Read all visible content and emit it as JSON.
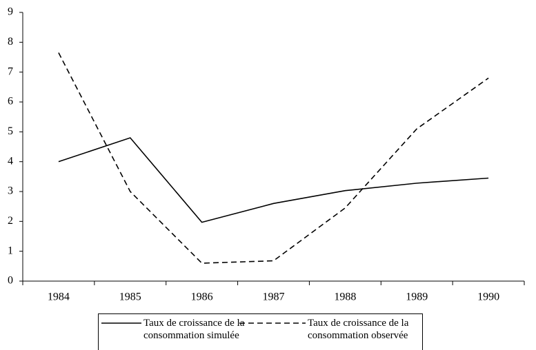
{
  "chart_data": {
    "type": "line",
    "categories": [
      "1984",
      "1985",
      "1986",
      "1987",
      "1988",
      "1989",
      "1990"
    ],
    "series": [
      {
        "name": "Taux de croissance de la consommation simulée",
        "color": "#000000",
        "dash": "solid",
        "values": [
          4.0,
          4.8,
          1.97,
          2.6,
          3.03,
          3.28,
          3.45
        ]
      },
      {
        "name": "Taux de croissance de la consommation observée",
        "color": "#000000",
        "dash": "dashed",
        "values": [
          7.65,
          3.0,
          0.6,
          0.68,
          2.45,
          5.1,
          6.8
        ]
      }
    ],
    "ylim": [
      0,
      9
    ],
    "yticks": [
      0,
      1,
      2,
      3,
      4,
      5,
      6,
      7,
      8,
      9
    ],
    "grid": false,
    "legend": "bottom"
  }
}
